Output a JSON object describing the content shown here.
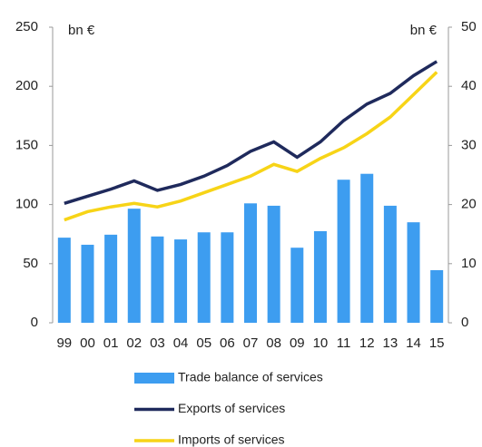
{
  "chart_data": {
    "type": "combo",
    "ylabel": "bn €",
    "y2label": "bn €",
    "categories": [
      "99",
      "00",
      "01",
      "02",
      "03",
      "04",
      "05",
      "06",
      "07",
      "08",
      "09",
      "10",
      "11",
      "12",
      "13",
      "14",
      "15"
    ],
    "series": [
      {
        "name": "Trade balance of services",
        "type": "bar",
        "axis": "y2",
        "color": "#3d9df0",
        "values": [
          14.4,
          13.2,
          14.9,
          19.3,
          14.6,
          14.1,
          15.3,
          15.3,
          20.2,
          19.8,
          12.7,
          15.5,
          24.2,
          25.2,
          19.8,
          17.0,
          8.9
        ]
      },
      {
        "name": "Exports of services",
        "type": "line",
        "axis": "y",
        "color": "#1f2a5c",
        "values": [
          101,
          107,
          113,
          120,
          112,
          117,
          124,
          133,
          145,
          153,
          140,
          153,
          171,
          185,
          194,
          209,
          221
        ]
      },
      {
        "name": "Imports of services",
        "type": "line",
        "axis": "y",
        "color": "#f7d417",
        "values": [
          87,
          94,
          98,
          101,
          98,
          103,
          110,
          117,
          124,
          134,
          128,
          139,
          148,
          160,
          174,
          193,
          212
        ]
      }
    ],
    "ylim": [
      0,
      250
    ],
    "yticks": [
      0,
      50,
      100,
      150,
      200,
      250
    ],
    "y2lim": [
      0,
      50
    ],
    "y2ticks": [
      0,
      10,
      20,
      30,
      40,
      50
    ],
    "legend": "bottom",
    "grid": false
  }
}
